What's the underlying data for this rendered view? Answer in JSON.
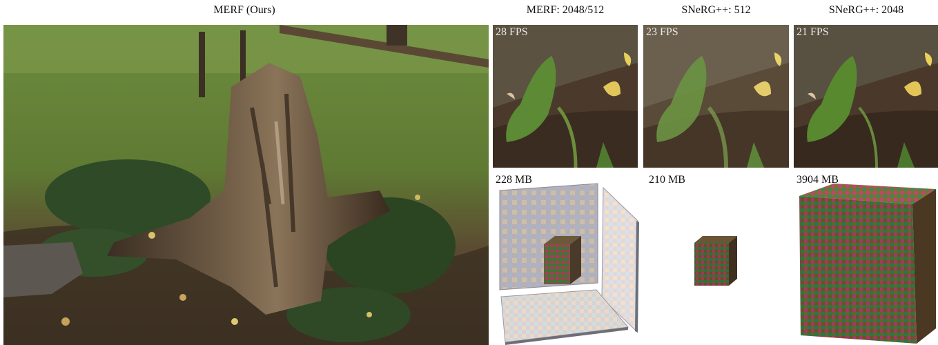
{
  "figure": {
    "captions": {
      "main": "MERF (Ours)",
      "merf": "MERF: 2048/512",
      "snerg512": "SNeRG++: 512",
      "snerg2048": "SNeRG++: 2048"
    },
    "fps": {
      "merf": "28 FPS",
      "snerg512": "23 FPS",
      "snerg2048": "21 FPS"
    },
    "memory": {
      "merf": "228 MB",
      "snerg512": "210 MB",
      "snerg2048": "3904 MB"
    }
  }
}
